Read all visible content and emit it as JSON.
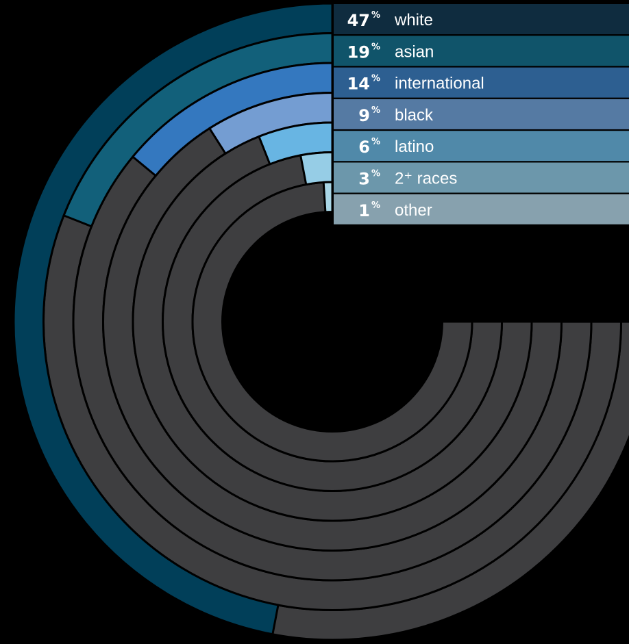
{
  "chart_data": {
    "type": "radial-bar",
    "unit": "%",
    "categories": [
      {
        "label": "white",
        "value": 47,
        "color": "#013f59",
        "label_color": "#0f2c3f"
      },
      {
        "label": "asian",
        "value": 19,
        "color": "#12607a",
        "label_color": "#10546a"
      },
      {
        "label": "international",
        "value": 14,
        "color": "#3478bf",
        "label_color": "#2d5f91"
      },
      {
        "label": "black",
        "value": 9,
        "color": "#749dd2",
        "label_color": "#557aa3"
      },
      {
        "label": "latino",
        "value": 6,
        "color": "#68b5e3",
        "label_color": "#5089a9"
      },
      {
        "label": "2⁺ races",
        "value": 3,
        "color": "#96cde6",
        "label_color": "#6c97ab"
      },
      {
        "label": "other",
        "value": 1,
        "color": "#a9d6e6",
        "label_color": "#87a1ae"
      }
    ],
    "track_color": "#3e3e40",
    "background": "#000000",
    "legend_position": "top-right"
  }
}
